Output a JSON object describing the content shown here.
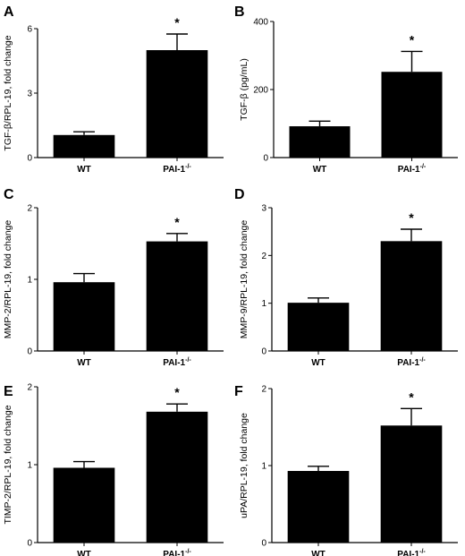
{
  "chart_data": [
    {
      "panel": "A",
      "type": "bar",
      "categories": [
        "WT",
        "PAI-1"
      ],
      "category_superscripts": [
        "",
        "-/-"
      ],
      "values": [
        1.05,
        5.0
      ],
      "errors": [
        0.15,
        0.75
      ],
      "significance": [
        "",
        "*"
      ],
      "ylabel": "TGF-β/RPL-19, fold change",
      "ylim": [
        0,
        6
      ],
      "yticks": [
        0,
        3,
        6
      ]
    },
    {
      "panel": "B",
      "type": "bar",
      "categories": [
        "WT",
        "PAI-1"
      ],
      "category_superscripts": [
        "",
        "-/-"
      ],
      "values": [
        92,
        252
      ],
      "errors": [
        15,
        60
      ],
      "significance": [
        "",
        "*"
      ],
      "ylabel": "TGF-β (pg/mL)",
      "ylim": [
        0,
        400
      ],
      "yticks": [
        0,
        200,
        400
      ]
    },
    {
      "panel": "C",
      "type": "bar",
      "categories": [
        "WT",
        "PAI-1"
      ],
      "category_superscripts": [
        "",
        "-/-"
      ],
      "values": [
        0.96,
        1.53
      ],
      "errors": [
        0.12,
        0.11
      ],
      "significance": [
        "",
        "*"
      ],
      "ylabel": "MMP-2/RPL-19, fold change",
      "ylim": [
        0,
        2
      ],
      "yticks": [
        0,
        1,
        2
      ]
    },
    {
      "panel": "D",
      "type": "bar",
      "categories": [
        "WT",
        "PAI-1"
      ],
      "category_superscripts": [
        "",
        "-/-"
      ],
      "values": [
        1.01,
        2.3
      ],
      "errors": [
        0.1,
        0.25
      ],
      "significance": [
        "",
        "*"
      ],
      "ylabel": "MMP-9/RPL-19, fold change",
      "ylim": [
        0,
        3
      ],
      "yticks": [
        0,
        1,
        2,
        3
      ]
    },
    {
      "panel": "E",
      "type": "bar",
      "categories": [
        "WT",
        "PAI-1"
      ],
      "category_superscripts": [
        "",
        "-/-"
      ],
      "values": [
        0.96,
        1.68
      ],
      "errors": [
        0.08,
        0.1
      ],
      "significance": [
        "",
        "*"
      ],
      "ylabel": "TIMP-2/RPL-19, fold change",
      "ylim": [
        0,
        2
      ],
      "yticks": [
        0,
        1,
        2
      ]
    },
    {
      "panel": "F",
      "type": "bar",
      "categories": [
        "WT",
        "PAI-1"
      ],
      "category_superscripts": [
        "",
        "-/-"
      ],
      "values": [
        0.93,
        1.52
      ],
      "errors": [
        0.06,
        0.22
      ],
      "significance": [
        "",
        "*"
      ],
      "ylabel": "uPA/RPL-19, fold change",
      "ylim": [
        0,
        2
      ],
      "yticks": [
        0,
        1,
        2
      ]
    }
  ],
  "colors": {
    "bar": "#000000",
    "axis": "#000000",
    "background": "#ffffff"
  }
}
